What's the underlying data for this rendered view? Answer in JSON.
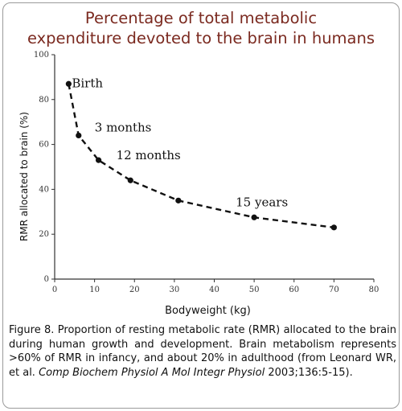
{
  "title": "Percentage of total metabolic\nexpenditure devoted to the brain in humans",
  "colors": {
    "title": "#7b2a20",
    "line": "#111111",
    "axis": "#333333"
  },
  "chart_data": {
    "type": "line",
    "xlabel": "Bodyweight (kg)",
    "ylabel": "RMR allocated to brain (%)",
    "xlim": [
      0,
      80
    ],
    "ylim": [
      0,
      100
    ],
    "x_ticks": [
      0,
      10,
      20,
      30,
      40,
      50,
      60,
      70,
      80
    ],
    "y_ticks": [
      0,
      20,
      40,
      60,
      80,
      100
    ],
    "grid": false,
    "line_style": "dashed",
    "x": [
      3.5,
      6,
      11,
      19,
      31,
      50,
      70
    ],
    "y": [
      87,
      64,
      53,
      44,
      35,
      27.5,
      23
    ],
    "annotations": [
      {
        "text": "Birth",
        "x": 3.5,
        "y": 87
      },
      {
        "text": "3 months",
        "x": 6,
        "y": 64
      },
      {
        "text": "12 months",
        "x": 11,
        "y": 53
      },
      {
        "text": "15 years",
        "x": 50,
        "y": 27.5
      }
    ]
  },
  "caption": {
    "text_before": "Figure 8. Proportion of resting metabolic rate (RMR) allocated to the brain during human growth and development. Brain metabolism represents >60% of RMR in infancy, and about 20% in adulthood (from Leonard WR, et al. ",
    "journal": "Comp Biochem Physiol A Mol Integr Physiol",
    "text_after": " 2003;136:5-15)."
  }
}
